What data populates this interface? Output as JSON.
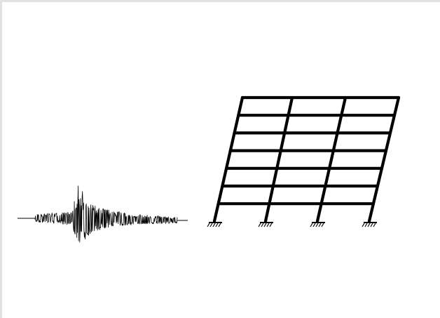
{
  "figure": {
    "left_panel": "ground-motion-accelerogram",
    "right_panel": "laterally-deformed-multistory-frame",
    "frame": {
      "stories": 6,
      "bays": 3,
      "supports": "fixed",
      "support_count": 4
    },
    "colors": {
      "ink": "#000000",
      "background": "#ffffff",
      "border": "#e2e2e2"
    }
  }
}
